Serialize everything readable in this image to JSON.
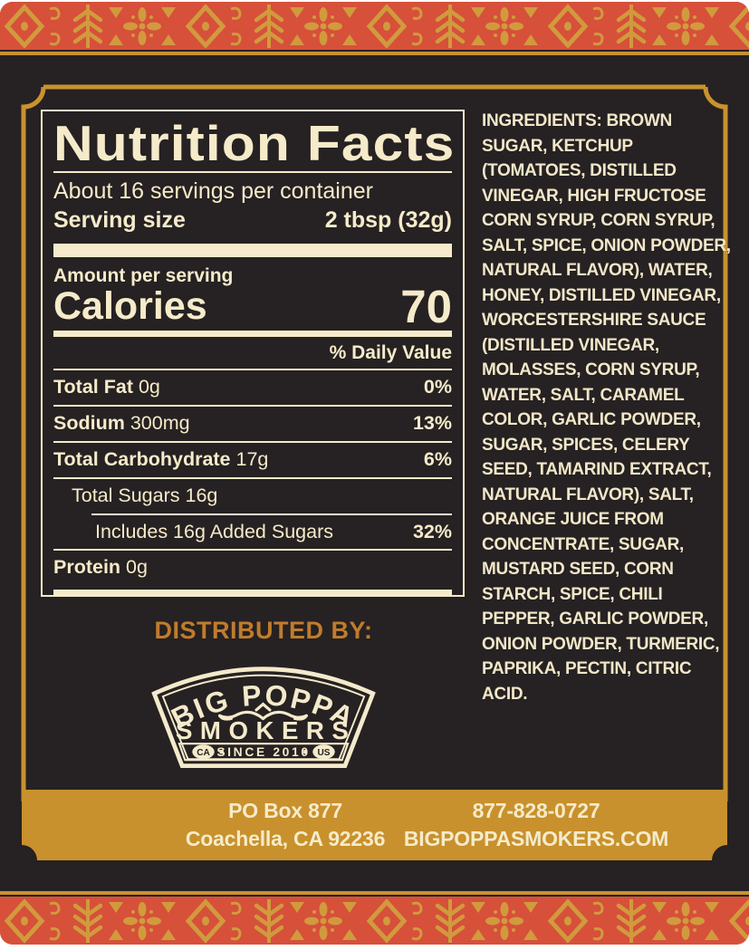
{
  "colors": {
    "cream": "#F5EBCA",
    "label_black": "#262122",
    "bar_gold": "#C8912D",
    "frame_gold": "#C8922F",
    "border_red": "#D7503A",
    "pattern_gold": "#D19A3D",
    "distributor_orange": "#C07C2B"
  },
  "nutrition": {
    "title": "Nutrition Facts",
    "servings_per_container": "About 16 servings per container",
    "serving_size_label": "Serving size",
    "serving_size_value": "2 tbsp (32g)",
    "amount_per_serving_label": "Amount per serving",
    "calories_label": "Calories",
    "calories_value": "70",
    "daily_value_header": "% Daily Value",
    "rows": [
      {
        "name": "Total Fat",
        "amount": "0g",
        "dv": "0%",
        "name_bold": true,
        "indent": 0,
        "rule": "none"
      },
      {
        "name": "Sodium",
        "amount": "300mg",
        "dv": "13%",
        "name_bold": true,
        "indent": 0,
        "rule": "full"
      },
      {
        "name": "Total Carbohydrate",
        "amount": "17g",
        "dv": "6%",
        "name_bold": true,
        "indent": 0,
        "rule": "full"
      },
      {
        "name": "Total Sugars",
        "amount": "16g",
        "dv": "",
        "name_bold": false,
        "indent": 1,
        "rule": "full"
      },
      {
        "name": "Includes 16g Added Sugars",
        "amount": "",
        "dv": "32%",
        "name_bold": false,
        "indent": 2,
        "rule": "indent"
      },
      {
        "name": "Protein",
        "amount": "0g",
        "dv": "",
        "name_bold": true,
        "indent": 0,
        "rule": "full"
      }
    ]
  },
  "ingredients": {
    "text": "INGREDIENTS: BROWN SUGAR, KETCHUP (TOMATOES, DISTILLED VINEGAR, HIGH FRUCTOSE CORN SYRUP, CORN SYRUP, SALT, SPICE, ONION POWDER, NATURAL FLAVOR), WATER, HONEY, DISTILLED VINEGAR, WORCESTERSHIRE SAUCE (DISTILLED VINEGAR, MOLASSES, CORN SYRUP, WATER, SALT, CARAMEL COLOR, GARLIC POWDER, SUGAR, SPICES, CELERY SEED, TAMARIND EXTRACT, NATURAL FLAVOR), SALT, ORANGE JUICE FROM CONCENTRATE, SUGAR, MUSTARD SEED, CORN STARCH, SPICE, CHILI PEPPER, GARLIC POWDER, ONION POWDER, TURMERIC, PAPRIKA, PECTIN, CITRIC ACID."
  },
  "brand": {
    "distributed_by_label": "DISTRIBUTED BY:",
    "logo_name_top": "BIG POPPA",
    "logo_name_bottom": "SMOKERS",
    "logo_badge_left": "CA",
    "logo_badge_right": "US",
    "logo_since": "SINCE 2010"
  },
  "footer": {
    "address_line1": "PO Box 877",
    "address_line2": "Coachella, CA 92236",
    "phone": "877-828-0727",
    "website": "BIGPOPPASMOKERS.COM"
  }
}
